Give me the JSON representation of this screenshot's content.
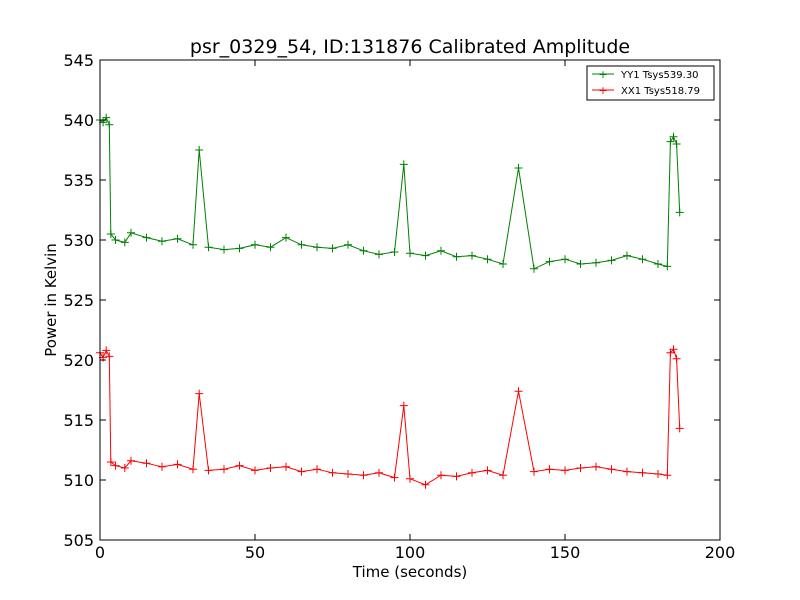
{
  "chart_data": {
    "type": "line",
    "title": "psr_0329_54, ID:131876 Calibrated Amplitude",
    "xlabel": "Time (seconds)",
    "ylabel": "Power in Kelvin",
    "xlim": [
      0,
      200
    ],
    "ylim": [
      505,
      545
    ],
    "xticks": [
      0,
      50,
      100,
      150,
      200
    ],
    "yticks": [
      505,
      510,
      515,
      520,
      525,
      530,
      535,
      540,
      545
    ],
    "grid": false,
    "legend_position": "top-right",
    "marker": "+",
    "series": [
      {
        "name": "YY1 Tsys539.30",
        "color": "#008000",
        "x": [
          0,
          1,
          2,
          3,
          3.5,
          5,
          8,
          10,
          15,
          20,
          25,
          30,
          32,
          35,
          40,
          45,
          50,
          55,
          60,
          65,
          70,
          75,
          80,
          85,
          90,
          95,
          98,
          100,
          105,
          110,
          115,
          120,
          125,
          130,
          135,
          140,
          145,
          150,
          155,
          160,
          165,
          170,
          175,
          180,
          183,
          184,
          185,
          186,
          187
        ],
        "values": [
          540,
          539.8,
          540.2,
          539.6,
          530.5,
          530,
          529.8,
          530.6,
          530.2,
          529.9,
          530.1,
          529.6,
          537.5,
          529.4,
          529.2,
          529.3,
          529.6,
          529.4,
          530.2,
          529.6,
          529.4,
          529.3,
          529.6,
          529.1,
          528.8,
          529,
          536.3,
          528.9,
          528.7,
          529.1,
          528.6,
          528.7,
          528.4,
          528,
          536,
          527.6,
          528.2,
          528.4,
          528,
          528.1,
          528.3,
          528.7,
          528.4,
          528,
          527.8,
          538.2,
          538.6,
          538,
          532.3
        ]
      },
      {
        "name": "XX1 Tsys518.79",
        "color": "#ff0000",
        "x": [
          0,
          1,
          2,
          3,
          3.5,
          5,
          8,
          10,
          15,
          20,
          25,
          30,
          32,
          35,
          40,
          45,
          50,
          55,
          60,
          65,
          70,
          75,
          80,
          85,
          90,
          95,
          98,
          100,
          105,
          110,
          115,
          120,
          125,
          130,
          135,
          140,
          145,
          150,
          155,
          160,
          165,
          170,
          175,
          180,
          183,
          184,
          185,
          186,
          187
        ],
        "values": [
          520.6,
          520.2,
          520.8,
          520.3,
          511.5,
          511.2,
          511,
          511.6,
          511.4,
          511.1,
          511.3,
          510.9,
          517.2,
          510.8,
          510.9,
          511.2,
          510.8,
          511,
          511.1,
          510.7,
          510.9,
          510.6,
          510.5,
          510.4,
          510.6,
          510.2,
          516.2,
          510.1,
          509.6,
          510.4,
          510.3,
          510.6,
          510.8,
          510.4,
          517.4,
          510.7,
          510.9,
          510.8,
          511,
          511.1,
          510.9,
          510.7,
          510.6,
          510.5,
          510.4,
          520.6,
          520.9,
          520.1,
          514.3
        ]
      }
    ]
  }
}
